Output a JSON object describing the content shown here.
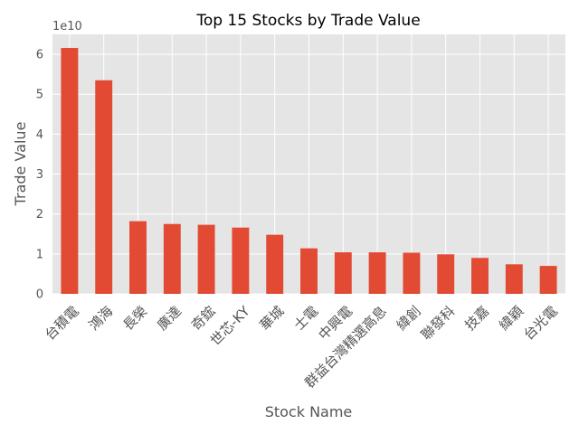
{
  "chart_data": {
    "type": "bar",
    "title": "Top 15 Stocks by Trade Value",
    "xlabel": "Stock Name",
    "ylabel": "Trade Value",
    "offset_text": "1e10",
    "categories": [
      "台積電",
      "鴻海",
      "長榮",
      "廣達",
      "奇鋐",
      "世芯-KY",
      "華城",
      "士電",
      "中興電",
      "群益台灣精選高息",
      "緯創",
      "聯發科",
      "技嘉",
      "緯穎",
      "台光電"
    ],
    "values": [
      61.6,
      53.5,
      18.2,
      17.5,
      17.3,
      16.6,
      14.8,
      11.4,
      10.4,
      10.4,
      10.3,
      9.9,
      9.0,
      7.4,
      7.0
    ],
    "value_scale": 1000000000.0,
    "yticks": [
      "0",
      "1",
      "2",
      "3",
      "4",
      "5",
      "6"
    ],
    "ylim": [
      0,
      65
    ],
    "grid": true,
    "bar_color": "#E24A33",
    "background_color": "#E5E5E5",
    "grid_color": "#FFFFFF"
  }
}
